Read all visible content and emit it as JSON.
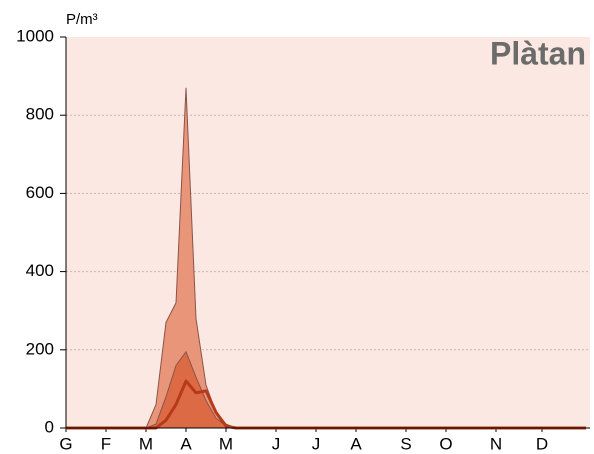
{
  "chart_data": {
    "type": "area",
    "title": "Plàtan",
    "y_label": "P/m³",
    "x": [
      0,
      8,
      9,
      10,
      11,
      12,
      13,
      14,
      15,
      16,
      17,
      52
    ],
    "series": [
      {
        "color": "#e8957a",
        "style": "area",
        "values": [
          0,
          0,
          60,
          270,
          320,
          870,
          280,
          110,
          40,
          10,
          0,
          0
        ]
      },
      {
        "color": "#dc6a45",
        "style": "area",
        "values": [
          0,
          0,
          10,
          80,
          160,
          195,
          130,
          70,
          25,
          5,
          0,
          0
        ]
      },
      {
        "color": "#b8381a",
        "style": "line",
        "values": [
          0,
          0,
          0,
          20,
          60,
          120,
          90,
          95,
          40,
          5,
          0,
          0
        ]
      }
    ],
    "xlim": [
      0,
      52
    ],
    "xticks": [
      {
        "value": 0,
        "label": "G"
      },
      {
        "value": 4,
        "label": "F"
      },
      {
        "value": 8,
        "label": "M"
      },
      {
        "value": 12,
        "label": "A"
      },
      {
        "value": 16,
        "label": "M"
      },
      {
        "value": 21,
        "label": "J"
      },
      {
        "value": 25,
        "label": "J"
      },
      {
        "value": 29,
        "label": "A"
      },
      {
        "value": 34,
        "label": "S"
      },
      {
        "value": 38,
        "label": "O"
      },
      {
        "value": 43,
        "label": "N"
      },
      {
        "value": 47.6,
        "label": "D"
      }
    ],
    "ylim": [
      0,
      1000
    ],
    "yticks": [
      0,
      200,
      400,
      600,
      800,
      1000
    ],
    "grid": true
  }
}
